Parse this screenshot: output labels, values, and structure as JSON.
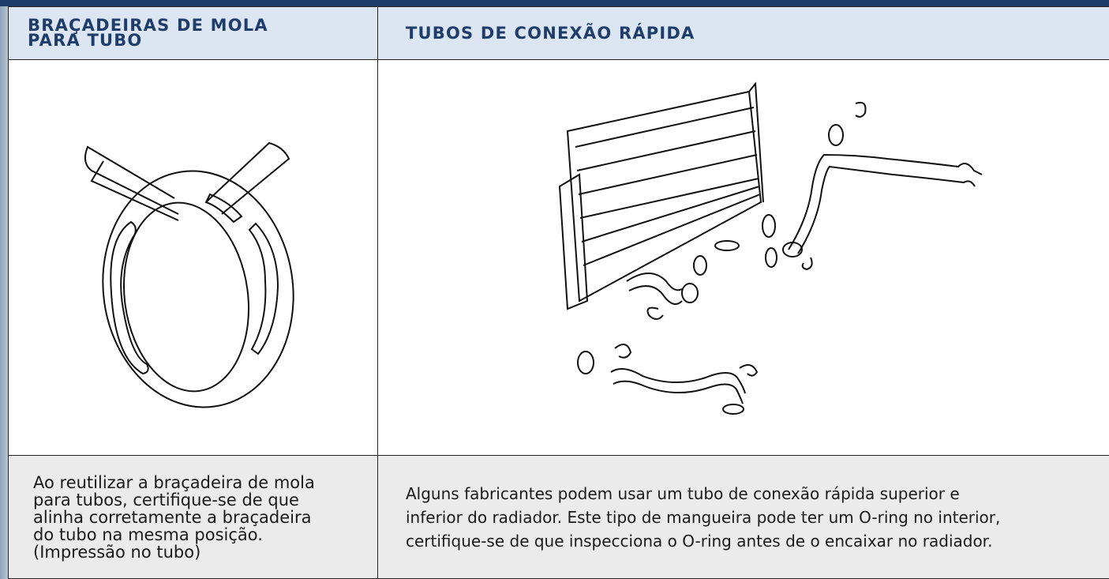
{
  "table": {
    "headers": [
      "BRAÇADEIRAS DE MOLA PARA TUBO",
      "TUBOS DE CONEXÃO RÁPIDA"
    ],
    "descriptions": [
      [
        "Ao reutilizar a braçadeira de  mola",
        "para tubos, certifique-se de que",
        "alinha corretamente a braçadeira",
        "do tubo na mesma posição.",
        "(Impressão no tubo)"
      ],
      [
        "Alguns fabricantes podem usar um tubo de conexão rápida superior e",
        "inferior do radiador. Este tipo de mangueira pode ter um O-ring no interior,",
        "certifique-se de que inspecciona o O-ring antes de o encaixar no radiador."
      ]
    ]
  }
}
